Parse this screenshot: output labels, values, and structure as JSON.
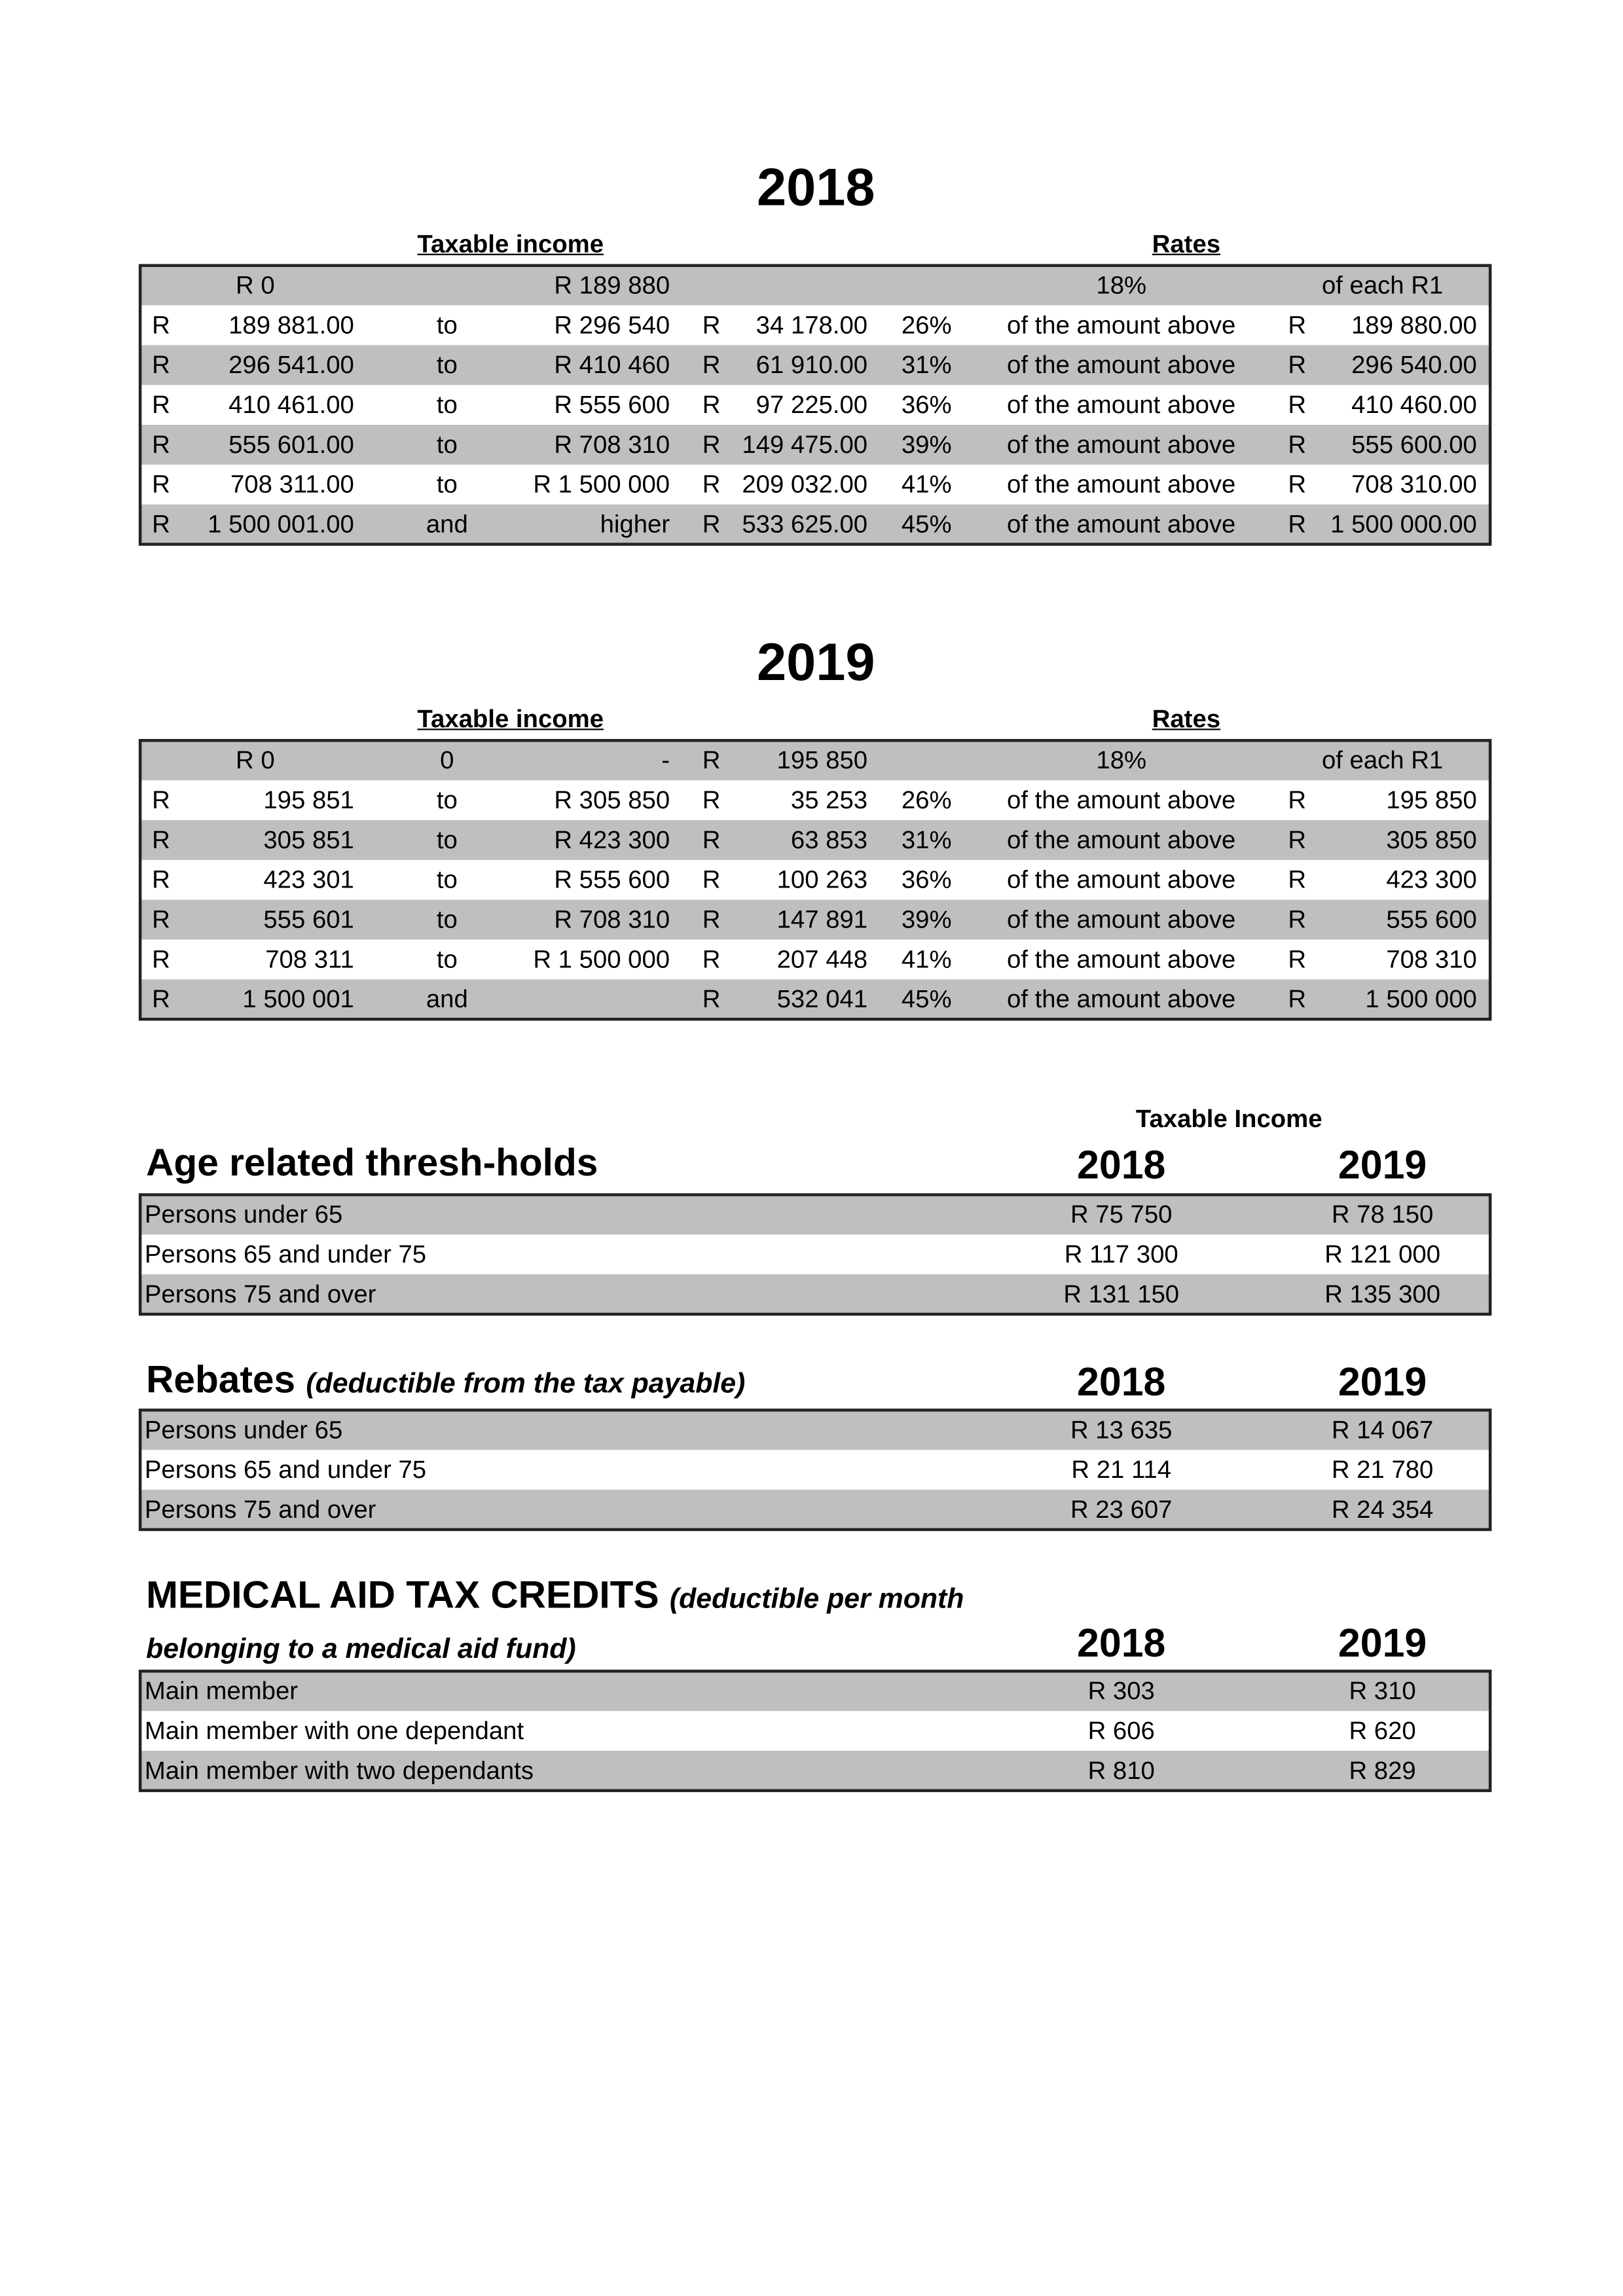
{
  "tax_2018": {
    "title": "2018",
    "income_header": "Taxable income",
    "rates_header": "Rates",
    "rows": [
      [
        null,
        "R 0",
        null,
        "R 189 880",
        null,
        null,
        null,
        "18%",
        null,
        "of each R1"
      ],
      [
        "R",
        "189 881.00",
        "to",
        "R 296 540",
        "R",
        "34 178.00",
        "26%",
        "of the amount above",
        "R",
        "189 880.00"
      ],
      [
        "R",
        "296 541.00",
        "to",
        "R 410 460",
        "R",
        "61 910.00",
        "31%",
        "of the amount above",
        "R",
        "296 540.00"
      ],
      [
        "R",
        "410 461.00",
        "to",
        "R 555 600",
        "R",
        "97 225.00",
        "36%",
        "of the amount above",
        "R",
        "410 460.00"
      ],
      [
        "R",
        "555 601.00",
        "to",
        "R 708 310",
        "R",
        "149 475.00",
        "39%",
        "of the amount above",
        "R",
        "555 600.00"
      ],
      [
        "R",
        "708 311.00",
        "to",
        "R 1 500 000",
        "R",
        "209 032.00",
        "41%",
        "of the amount above",
        "R",
        "708 310.00"
      ],
      [
        "R",
        "1 500 001.00",
        "and",
        "higher",
        "R",
        "533 625.00",
        "45%",
        "of the amount above",
        "R",
        "1 500 000.00"
      ]
    ]
  },
  "tax_2019": {
    "title": "2019",
    "income_header": "Taxable income",
    "rates_header": "Rates",
    "rows": [
      [
        null,
        "R 0",
        "0",
        "-",
        "R",
        "195 850",
        null,
        "18%",
        null,
        "of each R1"
      ],
      [
        "R",
        "195 851",
        "to",
        "R 305 850",
        "R",
        "35 253",
        "26%",
        "of the amount above",
        "R",
        "195 850"
      ],
      [
        "R",
        "305 851",
        "to",
        "R 423 300",
        "R",
        "63 853",
        "31%",
        "of the amount above",
        "R",
        "305 850"
      ],
      [
        "R",
        "423 301",
        "to",
        "R 555 600",
        "R",
        "100 263",
        "36%",
        "of the amount above",
        "R",
        "423 300"
      ],
      [
        "R",
        "555 601",
        "to",
        "R 708 310",
        "R",
        "147 891",
        "39%",
        "of the amount above",
        "R",
        "555 600"
      ],
      [
        "R",
        "708 311",
        "to",
        "R 1 500 000",
        "R",
        "207 448",
        "41%",
        "of the amount above",
        "R",
        "708 310"
      ],
      [
        "R",
        "1 500 001",
        "and",
        null,
        "R",
        "532 041",
        "45%",
        "of the amount above",
        "R",
        "1 500 000"
      ]
    ]
  },
  "age_thresholds": {
    "column_group": "Taxable Income",
    "title": "Age related thresh-holds",
    "years": [
      "2018",
      "2019"
    ],
    "rows": [
      {
        "label": "Persons under 65",
        "values": [
          "R 75 750",
          "R 78 150"
        ]
      },
      {
        "label": "Persons 65 and under 75",
        "values": [
          "R 117 300",
          "R 121 000"
        ]
      },
      {
        "label": "Persons 75 and over",
        "values": [
          "R 131 150",
          "R 135 300"
        ]
      }
    ]
  },
  "rebates": {
    "title": "Rebates",
    "subtitle": "(deductible from the tax payable)",
    "years": [
      "2018",
      "2019"
    ],
    "rows": [
      {
        "label": "Persons under 65",
        "values": [
          "R 13 635",
          "R 14 067"
        ]
      },
      {
        "label": "Persons 65 and under 75",
        "values": [
          "R 21 114",
          "R 21 780"
        ]
      },
      {
        "label": "Persons 75 and over",
        "values": [
          "R 23 607",
          "R 24 354"
        ]
      }
    ]
  },
  "medical_aid": {
    "title": "MEDICAL AID TAX CREDITS",
    "subtitle": "(deductible per month belonging to a medical aid fund)",
    "years": [
      "2018",
      "2019"
    ],
    "rows": [
      {
        "label": "Main member",
        "values": [
          "R 303",
          "R 310"
        ]
      },
      {
        "label": "Main member with one dependant",
        "values": [
          "R 606",
          "R 620"
        ]
      },
      {
        "label": "Main member with two dependants",
        "values": [
          "R 810",
          "R 829"
        ]
      }
    ]
  }
}
